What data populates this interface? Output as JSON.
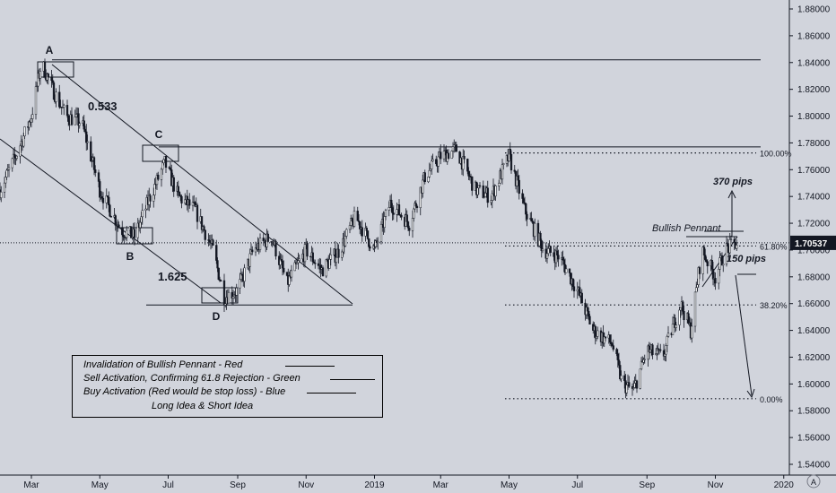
{
  "chart_data": {
    "type": "candlestick",
    "symbol_price": "1.70537",
    "y_axis": {
      "min": 1.54,
      "max": 1.88,
      "ticks": [
        "1.88000",
        "1.86000",
        "1.84000",
        "1.82000",
        "1.80000",
        "1.78000",
        "1.76000",
        "1.74000",
        "1.72000",
        "1.70000",
        "1.68000",
        "1.66000",
        "1.64000",
        "1.62000",
        "1.60000",
        "1.58000",
        "1.56000",
        "1.54000"
      ]
    },
    "x_axis": {
      "ticks": [
        "Mar",
        "May",
        "Jul",
        "Sep",
        "Nov",
        "2019",
        "Mar",
        "May",
        "Jul",
        "Sep",
        "Nov",
        "2020"
      ]
    },
    "price_path": [
      [
        "2018-02-01",
        1.745
      ],
      [
        "2018-02-15",
        1.77
      ],
      [
        "2018-03-01",
        1.8
      ],
      [
        "2018-03-10",
        1.84
      ],
      [
        "2018-03-20",
        1.82
      ],
      [
        "2018-04-01",
        1.8
      ],
      [
        "2018-04-15",
        1.795
      ],
      [
        "2018-05-01",
        1.745
      ],
      [
        "2018-05-20",
        1.715
      ],
      [
        "2018-06-01",
        1.71
      ],
      [
        "2018-06-15",
        1.74
      ],
      [
        "2018-06-28",
        1.765
      ],
      [
        "2018-07-10",
        1.74
      ],
      [
        "2018-07-25",
        1.73
      ],
      [
        "2018-08-10",
        1.7
      ],
      [
        "2018-08-20",
        1.665
      ],
      [
        "2018-09-01",
        1.67
      ],
      [
        "2018-09-15",
        1.7
      ],
      [
        "2018-10-01",
        1.71
      ],
      [
        "2018-10-15",
        1.675
      ],
      [
        "2018-11-01",
        1.7
      ],
      [
        "2018-11-15",
        1.685
      ],
      [
        "2018-12-01",
        1.7
      ],
      [
        "2018-12-15",
        1.725
      ],
      [
        "2019-01-01",
        1.7
      ],
      [
        "2019-01-15",
        1.735
      ],
      [
        "2019-02-01",
        1.72
      ],
      [
        "2019-02-15",
        1.755
      ],
      [
        "2019-03-01",
        1.77
      ],
      [
        "2019-03-15",
        1.775
      ],
      [
        "2019-04-01",
        1.745
      ],
      [
        "2019-04-15",
        1.74
      ],
      [
        "2019-05-01",
        1.77
      ],
      [
        "2019-05-15",
        1.73
      ],
      [
        "2019-06-01",
        1.7
      ],
      [
        "2019-06-15",
        1.695
      ],
      [
        "2019-07-01",
        1.67
      ],
      [
        "2019-07-15",
        1.64
      ],
      [
        "2019-08-01",
        1.63
      ],
      [
        "2019-08-10",
        1.6
      ],
      [
        "2019-08-20",
        1.595
      ],
      [
        "2019-09-01",
        1.625
      ],
      [
        "2019-09-15",
        1.62
      ],
      [
        "2019-10-01",
        1.66
      ],
      [
        "2019-10-10",
        1.64
      ],
      [
        "2019-10-20",
        1.7
      ],
      [
        "2019-11-01",
        1.68
      ],
      [
        "2019-11-10",
        1.7
      ],
      [
        "2019-11-20",
        1.705
      ]
    ],
    "fib_levels": [
      {
        "label": "100.00%",
        "value": 1.7725
      },
      {
        "label": "61.80%",
        "value": 1.703
      },
      {
        "label": "38.20%",
        "value": 1.659
      },
      {
        "label": "0.00%",
        "value": 1.589
      }
    ],
    "horizontal_levels": [
      1.842,
      1.777,
      1.659
    ],
    "points": [
      {
        "label": "A",
        "x": "2018-03-10",
        "y": 1.84
      },
      {
        "label": "B",
        "x": "2018-06-05",
        "y": 1.704
      },
      {
        "label": "C",
        "x": "2018-06-28",
        "y": 1.768
      },
      {
        "label": "D",
        "x": "2018-08-22",
        "y": 1.662
      }
    ],
    "annotations": {
      "a_c_ratio": "0.533",
      "b_d_ratio": "1.625",
      "pips_up": "370 pips",
      "pips_small": "150 pips",
      "pattern": "Bullish Pennant"
    },
    "legend": [
      "Invalidation of Bullish Pennant - Red",
      "Sell Activation, Confirming 61.8 Rejection - Green",
      "Buy Activation (Red would be stop loss) - Blue",
      "Long Idea & Short Idea"
    ],
    "grid": false,
    "currency_mark": "A"
  }
}
